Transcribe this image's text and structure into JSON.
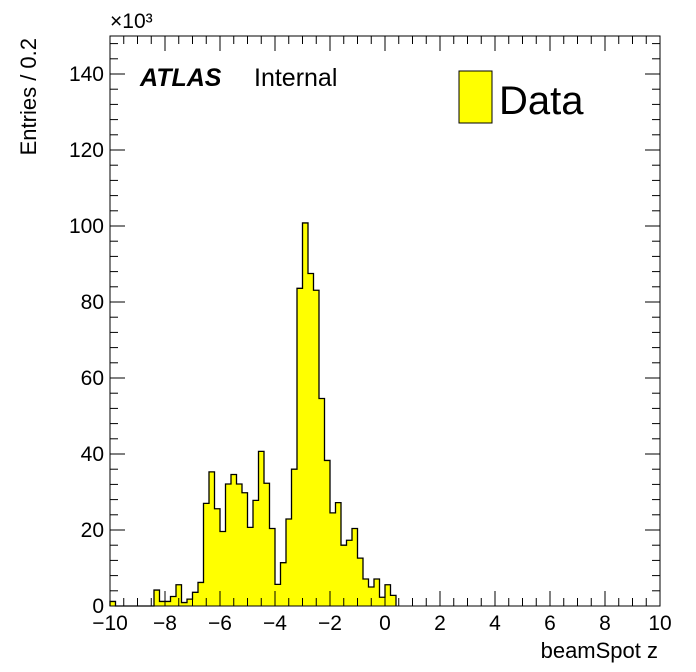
{
  "chart_data": {
    "type": "bar",
    "xlabel": "beamSpot z",
    "ylabel": "Entries / 0.2",
    "y_scale_label": "×10³",
    "xlim": [
      -10,
      10
    ],
    "ylim": [
      0,
      150000
    ],
    "x_tick_labels": [
      "−10",
      "−8",
      "−6",
      "−4",
      "−2",
      "0",
      "2",
      "4",
      "6",
      "8",
      "10"
    ],
    "y_tick_labels": [
      "0",
      "20",
      "40",
      "60",
      "80",
      "100",
      "120",
      "140"
    ],
    "annotations": {
      "atlas": "ATLAS",
      "status": "Internal"
    },
    "legend": {
      "position": "top-right",
      "entries": [
        "Data"
      ]
    },
    "fill_color": "#ffff00",
    "series": [
      {
        "name": "Data",
        "bins": [
          {
            "x": -10.0,
            "y": 1200
          },
          {
            "x": -9.8,
            "y": 0
          },
          {
            "x": -9.6,
            "y": 0
          },
          {
            "x": -9.4,
            "y": 0
          },
          {
            "x": -9.2,
            "y": 0
          },
          {
            "x": -9.0,
            "y": 0
          },
          {
            "x": -8.8,
            "y": 0
          },
          {
            "x": -8.6,
            "y": 0
          },
          {
            "x": -8.4,
            "y": 4200
          },
          {
            "x": -8.2,
            "y": 1200
          },
          {
            "x": -8.0,
            "y": 1200
          },
          {
            "x": -7.8,
            "y": 2500
          },
          {
            "x": -7.6,
            "y": 5600
          },
          {
            "x": -7.4,
            "y": 900
          },
          {
            "x": -7.2,
            "y": 1800
          },
          {
            "x": -7.0,
            "y": 3600
          },
          {
            "x": -6.8,
            "y": 6200
          },
          {
            "x": -6.6,
            "y": 27000
          },
          {
            "x": -6.4,
            "y": 35300
          },
          {
            "x": -6.2,
            "y": 25600
          },
          {
            "x": -6.0,
            "y": 19600
          },
          {
            "x": -5.8,
            "y": 32100
          },
          {
            "x": -5.6,
            "y": 34600
          },
          {
            "x": -5.4,
            "y": 32100
          },
          {
            "x": -5.2,
            "y": 29800
          },
          {
            "x": -5.0,
            "y": 20700
          },
          {
            "x": -4.8,
            "y": 27800
          },
          {
            "x": -4.6,
            "y": 40700
          },
          {
            "x": -4.4,
            "y": 32300
          },
          {
            "x": -4.2,
            "y": 20400
          },
          {
            "x": -4.0,
            "y": 5700
          },
          {
            "x": -3.8,
            "y": 11400
          },
          {
            "x": -3.6,
            "y": 22900
          },
          {
            "x": -3.4,
            "y": 36000
          },
          {
            "x": -3.2,
            "y": 83600
          },
          {
            "x": -3.0,
            "y": 100800
          },
          {
            "x": -2.8,
            "y": 87500
          },
          {
            "x": -2.6,
            "y": 83100
          },
          {
            "x": -2.4,
            "y": 54600
          },
          {
            "x": -2.2,
            "y": 38300
          },
          {
            "x": -2.0,
            "y": 24500
          },
          {
            "x": -1.8,
            "y": 27200
          },
          {
            "x": -1.6,
            "y": 16000
          },
          {
            "x": -1.4,
            "y": 17300
          },
          {
            "x": -1.2,
            "y": 20400
          },
          {
            "x": -1.0,
            "y": 12600
          },
          {
            "x": -0.8,
            "y": 7100
          },
          {
            "x": -0.6,
            "y": 5000
          },
          {
            "x": -0.4,
            "y": 7100
          },
          {
            "x": -0.2,
            "y": 2300
          },
          {
            "x": 0.0,
            "y": 5600
          },
          {
            "x": 0.2,
            "y": 2800
          }
        ]
      }
    ]
  }
}
